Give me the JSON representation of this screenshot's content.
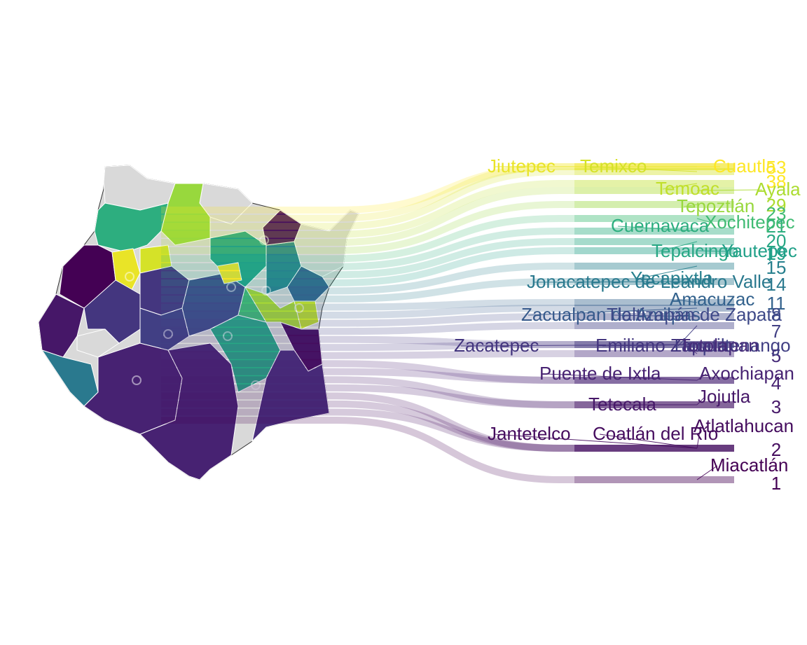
{
  "chart_data": {
    "type": "choropleth-bump",
    "palette": {
      "min": "#440154",
      "max": "#fde725",
      "na": "#d9d9d9"
    },
    "rank_range": [
      1,
      33
    ],
    "municipalities": [
      {
        "name": "Cuautla",
        "rank": 33
      },
      {
        "name": "Jiutepec",
        "rank": 32
      },
      {
        "name": "Temixco",
        "rank": 31
      },
      {
        "name": "Temoac",
        "rank": 30
      },
      {
        "name": "Ayala",
        "rank": 29
      },
      {
        "name": "Tepoztlán",
        "rank": 28
      },
      {
        "name": "Xochitepec",
        "rank": 23
      },
      {
        "name": "Cuernavaca",
        "rank": 21
      },
      {
        "name": "Tepalcingo",
        "rank": 20
      },
      {
        "name": "Yautepec",
        "rank": 19
      },
      {
        "name": "Yecapixtla",
        "rank": 15
      },
      {
        "name": "Jonacatepec de Leandro Valle",
        "rank": 14
      },
      {
        "name": "Amacuzac",
        "rank": 11
      },
      {
        "name": "Zacualpan de Amilpas",
        "rank": 10
      },
      {
        "name": "Tlaltizapán de Zapata",
        "rank": 8
      },
      {
        "name": "Tlaquiltenango",
        "rank": 7
      },
      {
        "name": "Zacatepec",
        "rank": 6
      },
      {
        "name": "Emiliano Zapata",
        "rank": 6
      },
      {
        "name": "Totolapan",
        "rank": 5
      },
      {
        "name": "Puente de Ixtla",
        "rank": 4
      },
      {
        "name": "Axochiapan",
        "rank": 4
      },
      {
        "name": "Jojutla",
        "rank": 3
      },
      {
        "name": "Tetecala",
        "rank": 3
      },
      {
        "name": "Atlatlahucan",
        "rank": 2
      },
      {
        "name": "Jantetelco",
        "rank": 2
      },
      {
        "name": "Coatlán del Río",
        "rank": 2
      },
      {
        "name": "Miacatlán",
        "rank": 1
      }
    ],
    "rank_ticks": [
      "53",
      "38",
      "29",
      "23",
      "21",
      "20",
      "19",
      "15",
      "14",
      "11",
      "8",
      "7",
      "5",
      "4",
      "3",
      "2",
      "1"
    ]
  }
}
